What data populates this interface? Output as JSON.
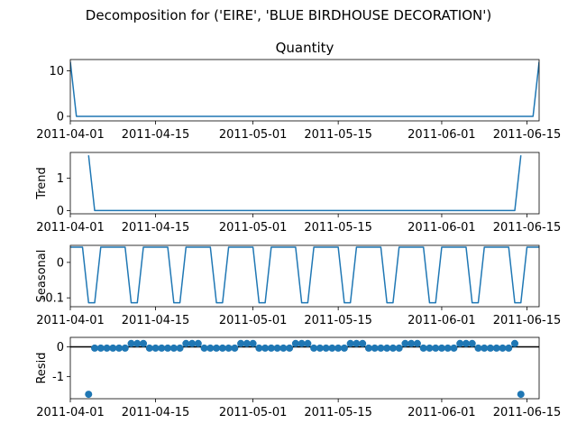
{
  "figure": {
    "suptitle": "Decomposition for ('EIRE', 'BLUE BIRDHOUSE DECORATION')",
    "line_color": "#1f77b4",
    "zero_line_color": "#000000"
  },
  "chart_data": [
    {
      "type": "line",
      "panel": "observed",
      "title": "Quantity",
      "ylabel": "",
      "xlim": [
        "2011-04-01",
        "2011-06-17"
      ],
      "ylim": [
        -1,
        12.5
      ],
      "yticks": [
        0,
        10
      ],
      "xticks": [
        "2011-04-01",
        "2011-04-15",
        "2011-05-01",
        "2011-05-15",
        "2011-06-01",
        "2011-06-15"
      ],
      "x": [
        "2011-04-01",
        "2011-04-02",
        "2011-06-16",
        "2011-06-17"
      ],
      "values": [
        12,
        0,
        0,
        12
      ]
    },
    {
      "type": "line",
      "panel": "trend",
      "title": "",
      "ylabel": "Trend",
      "xlim": [
        "2011-04-01",
        "2011-06-17"
      ],
      "ylim": [
        -0.1,
        1.8
      ],
      "yticks": [
        0,
        1
      ],
      "xticks": [
        "2011-04-01",
        "2011-04-15",
        "2011-05-01",
        "2011-05-15",
        "2011-06-01",
        "2011-06-15"
      ],
      "x": [
        "2011-04-04",
        "2011-04-05",
        "2011-06-13",
        "2011-06-14"
      ],
      "values": [
        1.71,
        0,
        0,
        1.71
      ]
    },
    {
      "type": "line",
      "panel": "seasonal",
      "title": "",
      "ylabel": "Seasonal",
      "xlim": [
        "2011-04-01",
        "2011-06-17"
      ],
      "ylim": [
        -0.125,
        0.048
      ],
      "yticks": [
        0.0,
        -0.1
      ],
      "xticks": [
        "2011-04-01",
        "2011-04-15",
        "2011-05-01",
        "2011-05-15",
        "2011-06-01",
        "2011-06-15"
      ],
      "x_start": "2011-04-01",
      "pattern": [
        0.043,
        0.043,
        0.043,
        -0.114,
        -0.114,
        0.043,
        0.043
      ],
      "days": 78
    },
    {
      "type": "scatter",
      "panel": "resid",
      "title": "",
      "ylabel": "Resid",
      "xlim": [
        "2011-04-01",
        "2011-06-17"
      ],
      "ylim": [
        -1.75,
        0.32
      ],
      "yticks": [
        0,
        -1
      ],
      "xticks": [
        "2011-04-01",
        "2011-04-15",
        "2011-05-01",
        "2011-05-15",
        "2011-06-01",
        "2011-06-15"
      ],
      "x_start": "2011-04-04",
      "days": 72,
      "pattern": [
        0.114,
        -0.043,
        -0.043,
        -0.043,
        -0.043,
        -0.043,
        -0.043,
        0.114,
        0.114
      ],
      "outliers": [
        {
          "x": "2011-04-04",
          "y": -1.6
        },
        {
          "x": "2011-06-14",
          "y": -1.6
        }
      ],
      "zero_line": true
    }
  ]
}
